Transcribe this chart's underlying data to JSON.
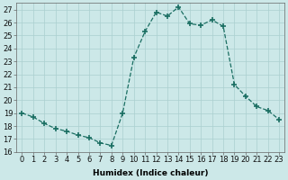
{
  "x": [
    0,
    1,
    2,
    3,
    4,
    5,
    6,
    7,
    8,
    9,
    10,
    11,
    12,
    13,
    14,
    15,
    16,
    17,
    18,
    19,
    20,
    21,
    22,
    23
  ],
  "y": [
    19.0,
    18.7,
    18.2,
    17.8,
    17.6,
    17.3,
    17.1,
    16.7,
    16.5,
    19.0,
    23.3,
    25.3,
    26.8,
    26.5,
    27.2,
    25.9,
    25.8,
    26.2,
    25.7,
    21.2,
    20.3,
    19.5,
    19.2,
    18.5
  ],
  "line_color": "#1a6e62",
  "marker": "+",
  "marker_size": 4,
  "marker_linewidth": 1.2,
  "bg_color": "#cce8e8",
  "grid_color": "#aacfcf",
  "xlabel": "Humidex (Indice chaleur)",
  "ylim": [
    16,
    27.5
  ],
  "yticks": [
    16,
    17,
    18,
    19,
    20,
    21,
    22,
    23,
    24,
    25,
    26,
    27
  ],
  "xticks": [
    0,
    1,
    2,
    3,
    4,
    5,
    6,
    7,
    8,
    9,
    10,
    11,
    12,
    13,
    14,
    15,
    16,
    17,
    18,
    19,
    20,
    21,
    22,
    23
  ],
  "xtick_labels": [
    "0",
    "1",
    "2",
    "3",
    "4",
    "5",
    "6",
    "7",
    "8",
    "9",
    "10",
    "11",
    "12",
    "13",
    "14",
    "15",
    "16",
    "17",
    "18",
    "19",
    "20",
    "21",
    "22",
    "23"
  ],
  "axis_fontsize": 6.5,
  "tick_fontsize": 6.0
}
